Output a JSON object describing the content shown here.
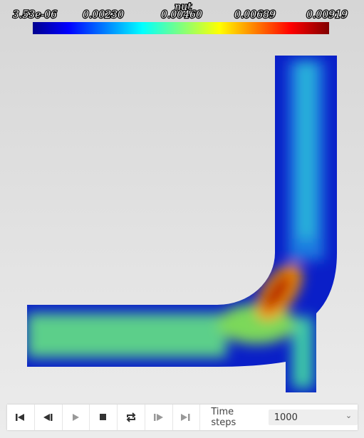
{
  "colorbar": {
    "title": "nut",
    "labels": [
      "3.53e-06",
      "0.00230",
      "0.00460",
      "0.00689",
      "0.00919"
    ]
  },
  "controls": {
    "time_steps_label": "Time steps",
    "time_steps_value": "1000"
  }
}
